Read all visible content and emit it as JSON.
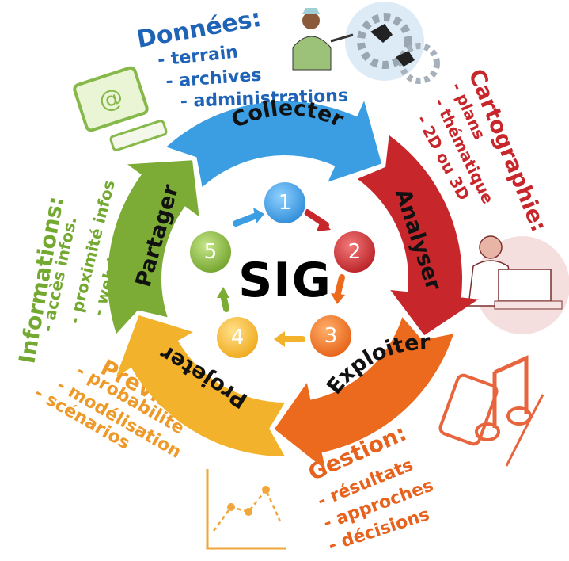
{
  "center": {
    "label": "SIG"
  },
  "cycle": {
    "segments": [
      {
        "label": "Collecter",
        "color": "#3b9ee3"
      },
      {
        "label": "Analyser",
        "color": "#c7262b"
      },
      {
        "label": "Exploiter",
        "color": "#ec6a1d"
      },
      {
        "label": "Projeter",
        "color": "#f2b22b"
      },
      {
        "label": "Partager",
        "color": "#7cab36"
      }
    ],
    "steps": [
      {
        "number": "1",
        "color": "#3b9ee3"
      },
      {
        "number": "2",
        "color": "#c7262b"
      },
      {
        "number": "3",
        "color": "#ec6a1d"
      },
      {
        "number": "4",
        "color": "#f2b22b"
      },
      {
        "number": "5",
        "color": "#7cab36"
      }
    ]
  },
  "blocks": {
    "donnees": {
      "title": "Données:",
      "items": [
        "- terrain",
        "- archives",
        "- administrations"
      ],
      "color": "#1f63b7"
    },
    "cartographie": {
      "title": "Cartographie:",
      "items": [
        "- plans",
        "- thématique",
        "- 2D ou 3D"
      ],
      "color": "#c7262b"
    },
    "gestion": {
      "title": "Gestion:",
      "items": [
        "- résultats",
        "- approches",
        "- décisions"
      ],
      "color": "#e6621d"
    },
    "prevision": {
      "title": "Prévision:",
      "items": [
        "- probabilité",
        "- modélisation",
        "- scénarios"
      ],
      "color": "#ee9a2a"
    },
    "informations": {
      "title": "Informations:",
      "items": [
        "- accès infos.",
        "- proximité infos",
        "- web infos"
      ],
      "color": "#74a931"
    }
  },
  "icons": {
    "donnees": "person-presenting-icon",
    "gears": "business-gears-icon",
    "cartographie": "person-at-computer-icon",
    "gestion": "phone-music-icon",
    "prevision": "chart-icon",
    "informations": "computer-email-icon"
  }
}
